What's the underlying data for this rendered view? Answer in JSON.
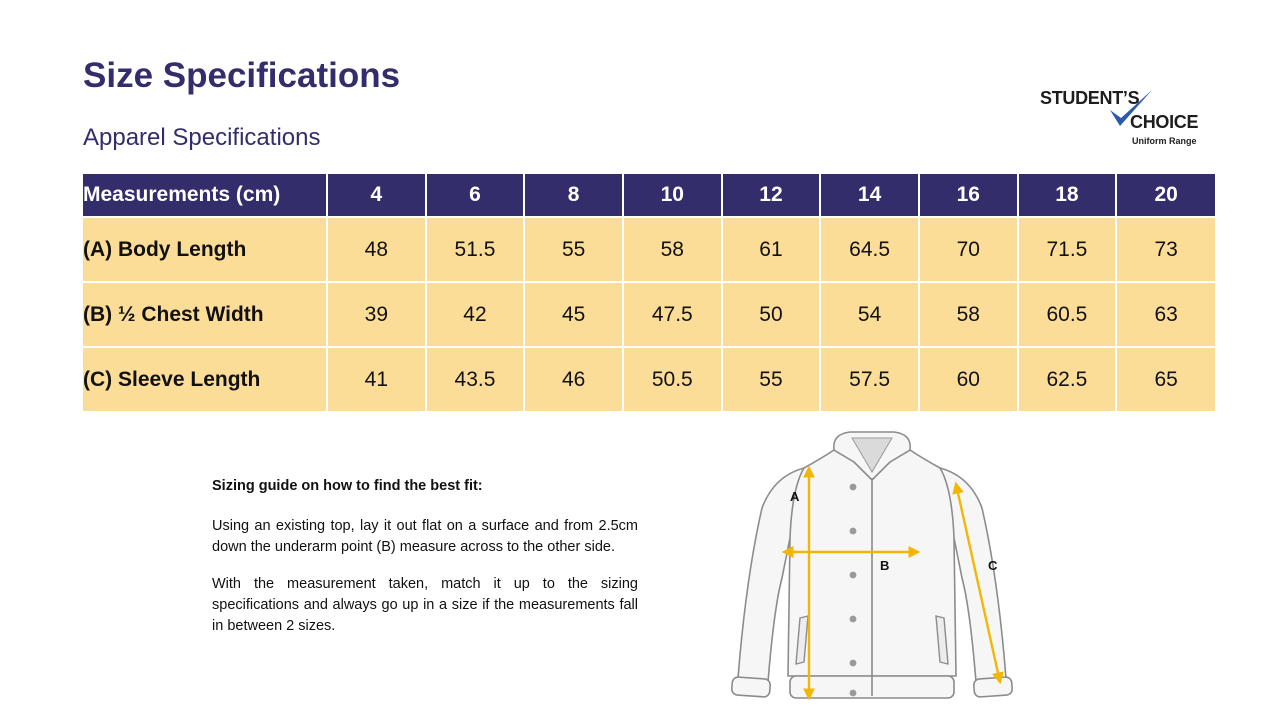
{
  "page": {
    "title": "Size Specifications",
    "subtitle": "Apparel Specifications"
  },
  "logo": {
    "line1": "STUDENT’S",
    "line2": "CHOICE",
    "line3": "Uniform Range",
    "check_color": "#2b5aa6"
  },
  "table": {
    "header_label": "Measurements (cm)",
    "sizes": [
      "4",
      "6",
      "8",
      "10",
      "12",
      "14",
      "16",
      "18",
      "20"
    ],
    "rows": [
      {
        "label": "(A) Body Length",
        "values": [
          "48",
          "51.5",
          "55",
          "58",
          "61",
          "64.5",
          "70",
          "71.5",
          "73"
        ]
      },
      {
        "label": "(B) ½ Chest Width",
        "values": [
          "39",
          "42",
          "45",
          "47.5",
          "50",
          "54",
          "58",
          "60.5",
          "63"
        ]
      },
      {
        "label": "(C) Sleeve Length",
        "values": [
          "41",
          "43.5",
          "46",
          "50.5",
          "55",
          "57.5",
          "60",
          "62.5",
          "65"
        ]
      }
    ],
    "header_color": "#342d6b",
    "row_color": "#fcdd98"
  },
  "guide": {
    "heading": "Sizing guide on how to find the best fit:",
    "para1": "Using an existing top, lay it out flat on a surface and from 2.5cm down the underarm point (B) measure across to the other side.",
    "para2": "With the measurement taken, match it up to the sizing specifications and always go up in a size if the measurements fall in between 2 sizes."
  },
  "diagram": {
    "label_a": "A",
    "label_b": "B",
    "label_c": "C",
    "arrow_color": "#f2b705",
    "icon": "jacket-illustration"
  }
}
